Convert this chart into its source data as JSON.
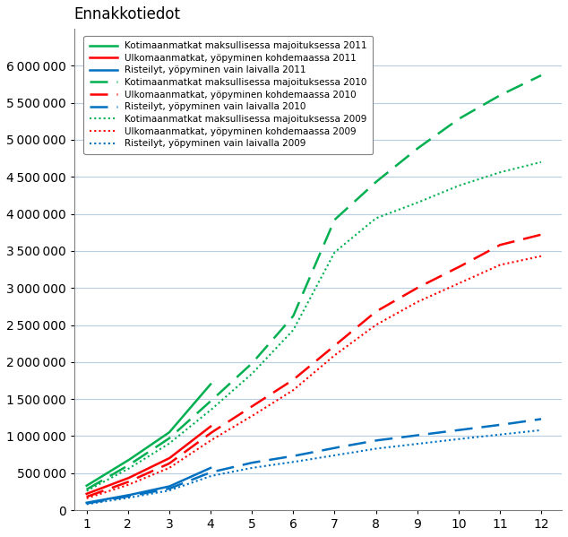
{
  "title": "Ennakkotiedot",
  "background_color": "#ffffff",
  "grid_color": "#b8cce4",
  "series": [
    {
      "label": "Kotimaanmatkat maksullisessa majoituksessa 2011",
      "color": "#00b050",
      "linestyle": "solid",
      "linewidth": 1.8,
      "monthly_values": [
        330000,
        670000,
        1050000,
        1700000,
        null,
        null,
        null,
        null,
        null,
        null,
        null,
        null
      ]
    },
    {
      "label": "Ulkomaanmatkat, yöpyminen kohdemaassa 2011",
      "color": "#ff0000",
      "linestyle": "solid",
      "linewidth": 1.8,
      "monthly_values": [
        220000,
        430000,
        700000,
        1130000,
        null,
        null,
        null,
        null,
        null,
        null,
        null,
        null
      ]
    },
    {
      "label": "Risteilyt, yöpyminen vain laivalla 2011",
      "color": "#0070c0",
      "linestyle": "solid",
      "linewidth": 1.8,
      "monthly_values": [
        100000,
        200000,
        320000,
        570000,
        null,
        null,
        null,
        null,
        null,
        null,
        null,
        null
      ]
    },
    {
      "label": "Kotimaanmatkat maksullisessa majoituksessa 2010",
      "color": "#00b050",
      "linestyle": "dashed",
      "linewidth": 1.8,
      "monthly_values": [
        280000,
        600000,
        970000,
        1470000,
        1980000,
        2620000,
        3920000,
        4430000,
        4880000,
        5280000,
        5600000,
        5870000
      ]
    },
    {
      "label": "Ulkomaanmatkat, yöpyminen kohdemaassa 2010",
      "color": "#ff0000",
      "linestyle": "dashed",
      "linewidth": 1.8,
      "monthly_values": [
        180000,
        380000,
        630000,
        1040000,
        1400000,
        1760000,
        2220000,
        2680000,
        3000000,
        3280000,
        3580000,
        3720000
      ]
    },
    {
      "label": "Risteilyt, yöpyminen vain laivalla 2010",
      "color": "#0070c0",
      "linestyle": "dashed",
      "linewidth": 1.8,
      "monthly_values": [
        90000,
        185000,
        290000,
        510000,
        640000,
        730000,
        840000,
        940000,
        1010000,
        1080000,
        1150000,
        1230000
      ]
    },
    {
      "label": "Kotimaanmatkat maksullisessa majoituksessa 2009",
      "color": "#00b050",
      "linestyle": "dotted",
      "linewidth": 1.5,
      "monthly_values": [
        260000,
        555000,
        900000,
        1350000,
        1840000,
        2430000,
        3480000,
        3940000,
        4150000,
        4380000,
        4560000,
        4700000
      ]
    },
    {
      "label": "Ulkomaanmatkat, yöpyminen kohdemaassa 2009",
      "color": "#ff0000",
      "linestyle": "dotted",
      "linewidth": 1.5,
      "monthly_values": [
        160000,
        340000,
        570000,
        940000,
        1270000,
        1620000,
        2090000,
        2500000,
        2810000,
        3060000,
        3310000,
        3430000
      ]
    },
    {
      "label": "Risteilyt, yöpyminen vain laivalla 2009",
      "color": "#0070c0",
      "linestyle": "dotted",
      "linewidth": 1.5,
      "monthly_values": [
        80000,
        165000,
        265000,
        460000,
        570000,
        650000,
        740000,
        830000,
        895000,
        960000,
        1020000,
        1080000
      ]
    }
  ],
  "xlim": [
    0.7,
    12.5
  ],
  "ylim": [
    0,
    6500000
  ],
  "yticks": [
    0,
    500000,
    1000000,
    1500000,
    2000000,
    2500000,
    3000000,
    3500000,
    4000000,
    4500000,
    5000000,
    5500000,
    6000000
  ],
  "xticks": [
    1,
    2,
    3,
    4,
    5,
    6,
    7,
    8,
    9,
    10,
    11,
    12
  ],
  "legend_fontsize": 7.5,
  "title_fontsize": 12
}
